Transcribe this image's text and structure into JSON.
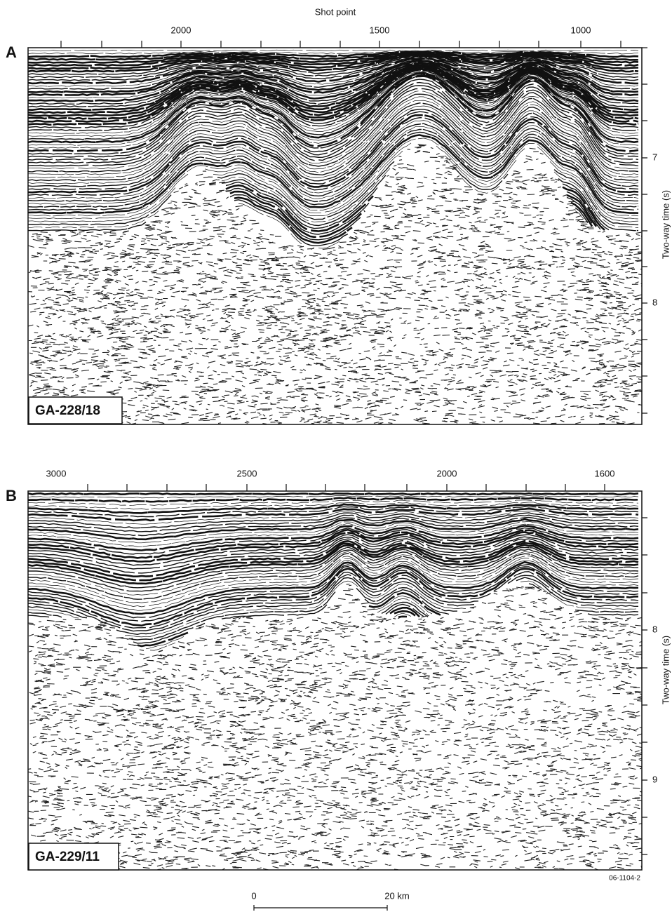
{
  "figure": {
    "panels": [
      {
        "label": "A",
        "x_axis_title": "Shot point",
        "x_ticks": [
          2000,
          1500,
          1000
        ],
        "y_axis_title": "Two-way time (s)",
        "y_ticks": [
          7,
          8
        ],
        "line_name": "GA-228/18"
      },
      {
        "label": "B",
        "x_ticks": [
          3000,
          2500,
          2000,
          1600
        ],
        "y_axis_title": "Two-way time (s)",
        "y_ticks": [
          8,
          9
        ],
        "line_name": "GA-229/11"
      }
    ],
    "figure_id": "06-1104-2",
    "scale_bar": {
      "start": 0,
      "end": "20 km"
    }
  }
}
